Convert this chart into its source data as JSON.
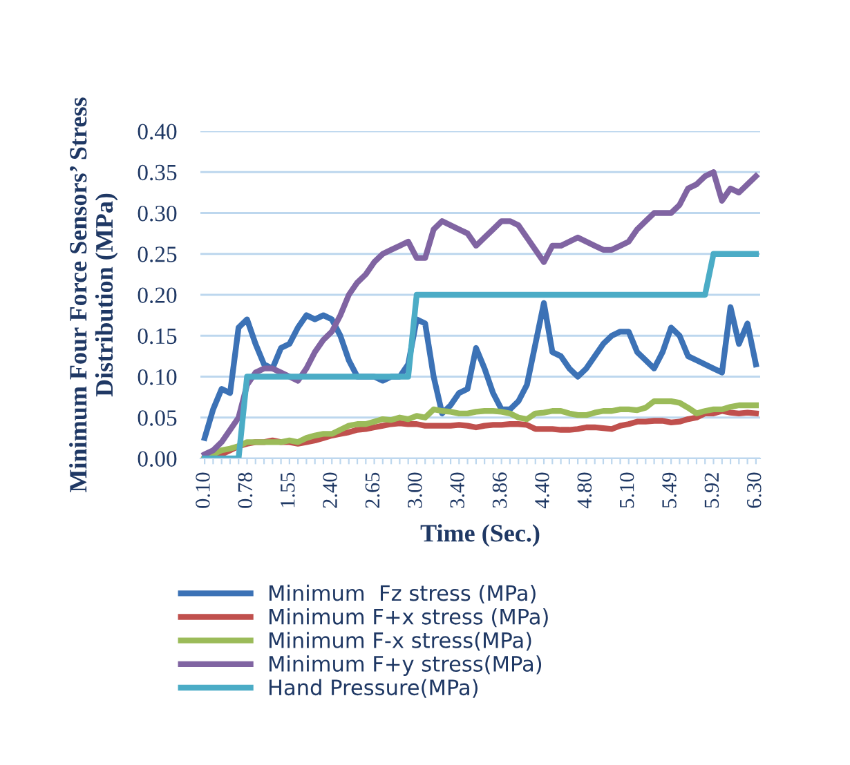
{
  "chart_data": {
    "type": "line",
    "xlabel": "Time (Sec.)",
    "ylabel": "Minimum Four Force Sensors’ Stress\nDistribution (MPa)",
    "categories": [
      "0.10",
      null,
      null,
      null,
      null,
      "0.78",
      null,
      null,
      null,
      null,
      "1.55",
      null,
      null,
      null,
      null,
      "2.40",
      null,
      null,
      null,
      null,
      "2.65",
      null,
      null,
      null,
      null,
      "3.00",
      null,
      null,
      null,
      null,
      "3.40",
      null,
      null,
      null,
      null,
      "3.86",
      null,
      null,
      null,
      null,
      "4.40",
      null,
      null,
      null,
      null,
      "4.80",
      null,
      null,
      null,
      null,
      "5.10",
      null,
      null,
      null,
      null,
      "5.49",
      null,
      null,
      null,
      null,
      "5.92",
      null,
      null,
      null,
      null,
      "6.30"
    ],
    "ylim": [
      0,
      0.4
    ],
    "yticks": [
      {
        "value": 0,
        "label": "0.00"
      },
      {
        "value": 0.05,
        "label": "0.05"
      },
      {
        "value": 0.1,
        "label": "0.10"
      },
      {
        "value": 0.15,
        "label": "0.15"
      },
      {
        "value": 0.2,
        "label": "0.20"
      },
      {
        "value": 0.25,
        "label": "0.25"
      },
      {
        "value": 0.3,
        "label": "0.30"
      },
      {
        "value": 0.35,
        "label": "0.35"
      },
      {
        "value": 0.4,
        "label": "0.40"
      }
    ],
    "grid": "y",
    "legend": "bottom",
    "marker": "none",
    "line_style": "solid",
    "series": [
      {
        "name": "Minimum  Fz stress (MPa)",
        "color": "#3c72b6",
        "values": [
          0.025,
          0.06,
          0.085,
          0.08,
          0.16,
          0.17,
          0.14,
          0.115,
          0.11,
          0.135,
          0.14,
          0.16,
          0.175,
          0.17,
          0.175,
          0.17,
          0.15,
          0.12,
          0.1,
          0.1,
          0.1,
          0.095,
          0.1,
          0.1,
          0.115,
          0.17,
          0.165,
          0.1,
          0.055,
          0.065,
          0.08,
          0.085,
          0.135,
          0.11,
          0.08,
          0.06,
          0.06,
          0.07,
          0.09,
          0.14,
          0.19,
          0.13,
          0.125,
          0.11,
          0.1,
          0.11,
          0.125,
          0.14,
          0.15,
          0.155,
          0.155,
          0.13,
          0.12,
          0.11,
          0.13,
          0.16,
          0.15,
          0.125,
          0.12,
          0.115,
          0.11,
          0.105,
          0.185,
          0.14,
          0.165,
          0.115
        ]
      },
      {
        "name": "Minimum F+x stress (MPa)",
        "color": "#c0504d",
        "values": [
          0.0,
          0.002,
          0.005,
          0.01,
          0.015,
          0.018,
          0.02,
          0.02,
          0.022,
          0.02,
          0.02,
          0.018,
          0.02,
          0.022,
          0.025,
          0.028,
          0.03,
          0.032,
          0.035,
          0.036,
          0.038,
          0.04,
          0.042,
          0.043,
          0.042,
          0.042,
          0.04,
          0.04,
          0.04,
          0.04,
          0.041,
          0.04,
          0.038,
          0.04,
          0.041,
          0.041,
          0.042,
          0.042,
          0.041,
          0.036,
          0.036,
          0.036,
          0.035,
          0.035,
          0.036,
          0.038,
          0.038,
          0.037,
          0.036,
          0.04,
          0.042,
          0.045,
          0.045,
          0.046,
          0.046,
          0.044,
          0.045,
          0.048,
          0.05,
          0.055,
          0.055,
          0.058,
          0.056,
          0.055,
          0.056,
          0.055
        ]
      },
      {
        "name": "Minimum F-x stress(MPa)",
        "color": "#9bbb59",
        "values": [
          0.0,
          0.005,
          0.01,
          0.012,
          0.015,
          0.02,
          0.02,
          0.02,
          0.02,
          0.02,
          0.022,
          0.02,
          0.025,
          0.028,
          0.03,
          0.03,
          0.035,
          0.04,
          0.042,
          0.042,
          0.045,
          0.048,
          0.047,
          0.05,
          0.048,
          0.052,
          0.05,
          0.06,
          0.058,
          0.057,
          0.055,
          0.055,
          0.057,
          0.058,
          0.058,
          0.057,
          0.055,
          0.05,
          0.048,
          0.055,
          0.056,
          0.058,
          0.058,
          0.055,
          0.053,
          0.053,
          0.056,
          0.058,
          0.058,
          0.06,
          0.06,
          0.059,
          0.062,
          0.07,
          0.07,
          0.07,
          0.068,
          0.062,
          0.055,
          0.058,
          0.06,
          0.06,
          0.063,
          0.065,
          0.065,
          0.065
        ]
      },
      {
        "name": "Minimum F+y stress(MPa)",
        "color": "#8064a2",
        "values": [
          0.005,
          0.01,
          0.02,
          0.035,
          0.05,
          0.09,
          0.105,
          0.11,
          0.11,
          0.105,
          0.1,
          0.095,
          0.11,
          0.13,
          0.145,
          0.155,
          0.175,
          0.2,
          0.215,
          0.225,
          0.24,
          0.25,
          0.255,
          0.26,
          0.265,
          0.245,
          0.245,
          0.28,
          0.29,
          0.285,
          0.28,
          0.275,
          0.26,
          0.27,
          0.28,
          0.29,
          0.29,
          0.285,
          0.27,
          0.255,
          0.24,
          0.26,
          0.26,
          0.265,
          0.27,
          0.265,
          0.26,
          0.255,
          0.255,
          0.26,
          0.265,
          0.28,
          0.29,
          0.3,
          0.3,
          0.3,
          0.31,
          0.33,
          0.335,
          0.345,
          0.35,
          0.315,
          0.33,
          0.325,
          0.335,
          0.345
        ]
      },
      {
        "name": "Hand Pressure(MPa)",
        "color": "#4bacc6",
        "values": [
          0,
          0,
          0,
          0,
          0,
          0.1,
          0.1,
          0.1,
          0.1,
          0.1,
          0.1,
          0.1,
          0.1,
          0.1,
          0.1,
          0.1,
          0.1,
          0.1,
          0.1,
          0.1,
          0.1,
          0.1,
          0.1,
          0.1,
          0.1,
          0.2,
          0.2,
          0.2,
          0.2,
          0.2,
          0.2,
          0.2,
          0.2,
          0.2,
          0.2,
          0.2,
          0.2,
          0.2,
          0.2,
          0.2,
          0.2,
          0.2,
          0.2,
          0.2,
          0.2,
          0.2,
          0.2,
          0.2,
          0.2,
          0.2,
          0.2,
          0.2,
          0.2,
          0.2,
          0.2,
          0.2,
          0.2,
          0.2,
          0.2,
          0.2,
          0.25,
          0.25,
          0.25,
          0.25,
          0.25,
          0.25
        ]
      }
    ]
  }
}
